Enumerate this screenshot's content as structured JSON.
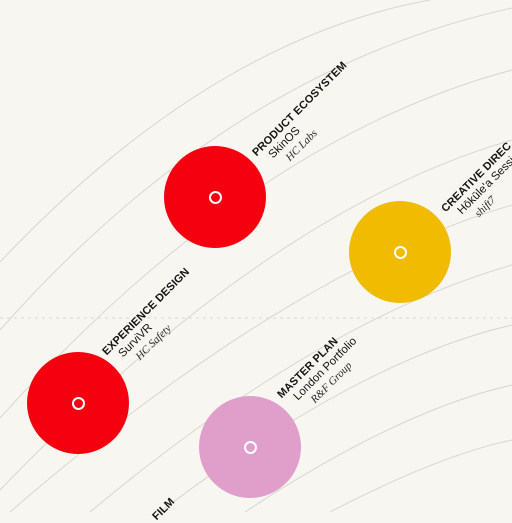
{
  "colors": {
    "background": "#f8f6f1",
    "arc": "#d9d6cf",
    "red": "#f5000f",
    "yellow": "#f0bb00",
    "pink": "#e09ecb"
  },
  "projects": [
    {
      "category": "PRODUCT ECOSYSTEM",
      "project": "SkinOS",
      "client": "HC Labs",
      "color": "#f5000f"
    },
    {
      "category": "CREATIVE DIREC",
      "project": "Hōkūle'a Sessi",
      "client": "shift7",
      "color": "#f0bb00"
    },
    {
      "category": "EXPERIENCE DESIGN",
      "project": "SurviVR",
      "client": "HC Safety",
      "color": "#f5000f"
    },
    {
      "category": "MASTER PLAN",
      "project": "London Portfolio",
      "client": "R&F Group",
      "color": "#e09ecb"
    },
    {
      "category": "FILM",
      "project": "",
      "client": "",
      "color": ""
    }
  ]
}
